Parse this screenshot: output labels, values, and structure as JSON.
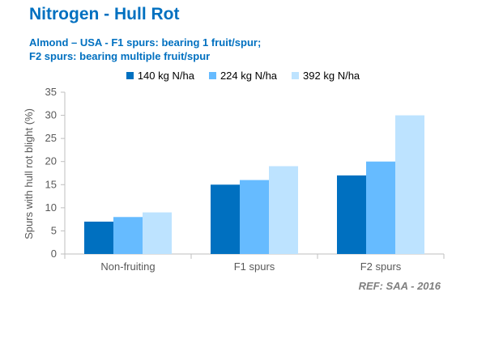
{
  "header": {
    "title": "Nitrogen - Hull Rot",
    "subtitle_line1": "Almond – USA - F1 spurs: bearing 1 fruit/spur;",
    "subtitle_line2": "F2 spurs: bearing multiple fruit/spur"
  },
  "reference": "REF:  SAA - 2016",
  "chart_data": {
    "type": "bar",
    "title": "Nitrogen - Hull Rot",
    "xlabel": "",
    "ylabel": "Spurs with hull rot blight (%)",
    "categories": [
      "Non-fruiting",
      "F1 spurs",
      "F2 spurs"
    ],
    "series": [
      {
        "name": "140 kg N/ha",
        "color": "#0070c0",
        "values": [
          7,
          15,
          17
        ]
      },
      {
        "name": "224 kg N/ha",
        "color": "#66bbff",
        "values": [
          8,
          16,
          20
        ]
      },
      {
        "name": "392 kg N/ha",
        "color": "#bde3ff",
        "values": [
          9,
          19,
          30
        ]
      }
    ],
    "ylim": [
      0,
      35
    ],
    "yticks": [
      0,
      5,
      10,
      15,
      20,
      25,
      30,
      35
    ],
    "grid": false,
    "legend_position": "top"
  }
}
